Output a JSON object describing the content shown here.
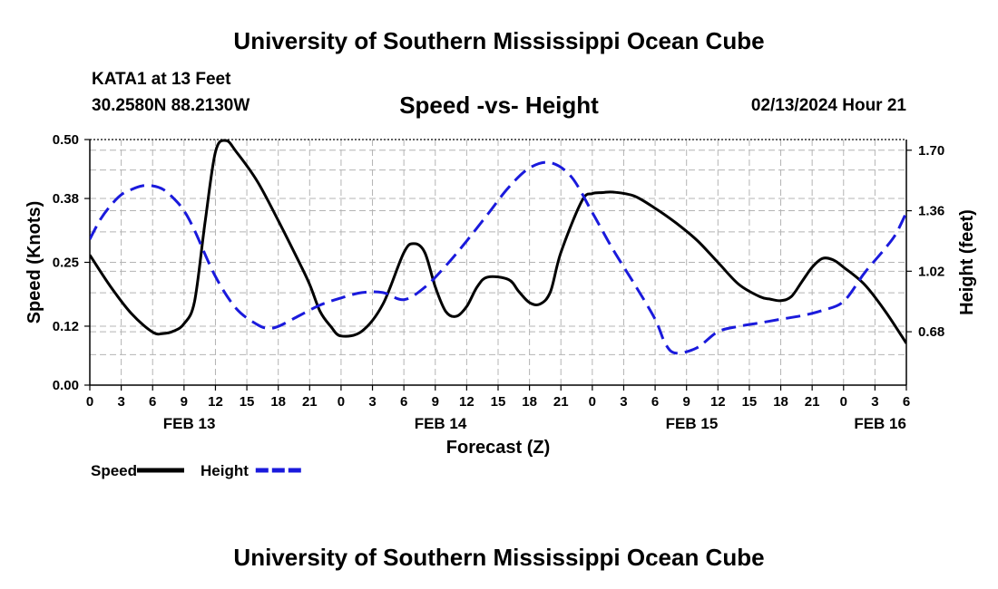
{
  "header": {
    "title": "University of Southern Mississippi Ocean Cube",
    "station": "KATA1 at 13 Feet",
    "coordinates": "30.2580N  88.2130W",
    "subtitle": "Speed -vs- Height",
    "datetime": "02/13/2024 Hour 21"
  },
  "footer": {
    "title": "University of Southern Mississippi Ocean Cube"
  },
  "chart_data": {
    "type": "line",
    "title": "Speed -vs- Height",
    "xlabel": "Forecast (Z)",
    "ylabel": "Speed (Knots)",
    "y2label": "Height (feet)",
    "xlim": [
      0,
      78
    ],
    "ylim": [
      0,
      0.5
    ],
    "y2lim": [
      0.38,
      1.76
    ],
    "x_ticks": [
      0,
      3,
      6,
      9,
      12,
      15,
      18,
      21,
      24,
      27,
      30,
      33,
      36,
      39,
      42,
      45,
      48,
      51,
      54,
      57,
      60,
      63,
      66,
      69,
      72,
      75,
      78
    ],
    "x_tick_labels": [
      "0",
      "3",
      "6",
      "9",
      "12",
      "15",
      "18",
      "21",
      "0",
      "3",
      "6",
      "9",
      "12",
      "15",
      "18",
      "21",
      "0",
      "3",
      "6",
      "9",
      "12",
      "15",
      "18",
      "21",
      "0",
      "3",
      "6"
    ],
    "date_labels": [
      {
        "x": 9.5,
        "label": "FEB 13"
      },
      {
        "x": 33.5,
        "label": "FEB 14"
      },
      {
        "x": 57.5,
        "label": "FEB 15"
      },
      {
        "x": 75.5,
        "label": "FEB 16"
      }
    ],
    "y_ticks": [
      0.0,
      0.12,
      0.25,
      0.38,
      0.5
    ],
    "y_tick_labels": [
      "0.00",
      "0.12",
      "0.25",
      "0.38",
      "0.50"
    ],
    "y2_ticks": [
      0.68,
      1.02,
      1.36,
      1.7
    ],
    "y2_tick_labels": [
      "0.68",
      "1.02",
      "1.36",
      "1.70"
    ],
    "grid": true,
    "legend_position": "bottom-left",
    "series": [
      {
        "name": "Speed",
        "axis": "left",
        "color": "#000000",
        "dash": "solid",
        "x": [
          0,
          2,
          4,
          6,
          7,
          8,
          9,
          10,
          11,
          12,
          13,
          14,
          16,
          18,
          20,
          21,
          22,
          23,
          24,
          26,
          28,
          30,
          31,
          32,
          33,
          34,
          35,
          36,
          37,
          38,
          40,
          41,
          42,
          43,
          44,
          45,
          47,
          48,
          49,
          50,
          52,
          54,
          56,
          58,
          60,
          62,
          64,
          65,
          66,
          67,
          68,
          69,
          70,
          71,
          72,
          74,
          76,
          78
        ],
        "values": [
          0.265,
          0.2,
          0.145,
          0.108,
          0.105,
          0.11,
          0.125,
          0.17,
          0.33,
          0.475,
          0.498,
          0.475,
          0.415,
          0.335,
          0.25,
          0.205,
          0.15,
          0.12,
          0.1,
          0.11,
          0.165,
          0.27,
          0.288,
          0.27,
          0.2,
          0.15,
          0.14,
          0.16,
          0.2,
          0.22,
          0.215,
          0.19,
          0.168,
          0.165,
          0.19,
          0.27,
          0.375,
          0.39,
          0.392,
          0.393,
          0.385,
          0.36,
          0.33,
          0.295,
          0.25,
          0.205,
          0.18,
          0.175,
          0.172,
          0.18,
          0.21,
          0.24,
          0.258,
          0.255,
          0.24,
          0.205,
          0.15,
          0.085
        ]
      },
      {
        "name": "Height",
        "axis": "right",
        "color": "#1a1adc",
        "dash": "dashed",
        "x": [
          0,
          1,
          2,
          3,
          4,
          5,
          6,
          7,
          8,
          9,
          10,
          12,
          14,
          16,
          17,
          18,
          20,
          22,
          24,
          26,
          28,
          30,
          32,
          34,
          36,
          38,
          40,
          42,
          44,
          46,
          48,
          50,
          52,
          54,
          55,
          56,
          58,
          60,
          62,
          64,
          66,
          68,
          70,
          72,
          74,
          76,
          77,
          78
        ],
        "values": [
          1.2,
          1.31,
          1.39,
          1.45,
          1.48,
          1.5,
          1.5,
          1.48,
          1.43,
          1.36,
          1.25,
          0.99,
          0.81,
          0.72,
          0.7,
          0.71,
          0.77,
          0.83,
          0.87,
          0.9,
          0.9,
          0.86,
          0.93,
          1.05,
          1.19,
          1.34,
          1.49,
          1.6,
          1.63,
          1.55,
          1.35,
          1.14,
          0.95,
          0.75,
          0.61,
          0.56,
          0.59,
          0.68,
          0.71,
          0.73,
          0.75,
          0.77,
          0.8,
          0.85,
          1.01,
          1.15,
          1.23,
          1.35
        ]
      }
    ]
  }
}
